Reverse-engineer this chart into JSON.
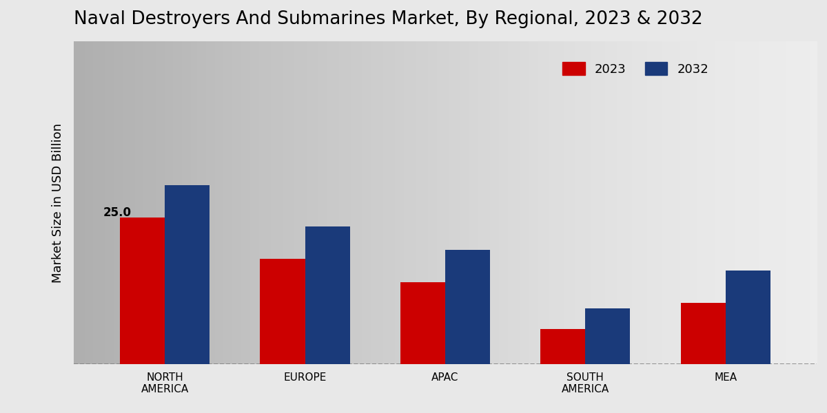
{
  "title": "Naval Destroyers And Submarines Market, By Regional, 2023 & 2032",
  "ylabel": "Market Size in USD Billion",
  "categories": [
    "NORTH\nAMERICA",
    "EUROPE",
    "APAC",
    "SOUTH\nAMERICA",
    "MEA"
  ],
  "values_2023": [
    25.0,
    18.0,
    14.0,
    6.0,
    10.5
  ],
  "values_2032": [
    30.5,
    23.5,
    19.5,
    9.5,
    16.0
  ],
  "color_2023": "#cc0000",
  "color_2032": "#1a3a7a",
  "bar_width": 0.32,
  "annotation_value": "25.0",
  "background_color_light": "#e8e8e8",
  "background_color_dark": "#d0d0d0",
  "ylim": [
    0,
    55
  ],
  "legend_labels": [
    "2023",
    "2032"
  ],
  "title_fontsize": 19,
  "axis_label_fontsize": 13,
  "tick_label_fontsize": 11
}
